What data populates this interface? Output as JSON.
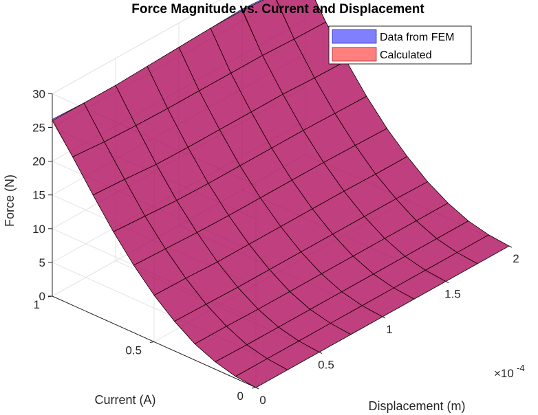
{
  "chart_data": {
    "type": "surface3d",
    "title": "Force Magnitude vs. Current and Displacement",
    "xlabel": "Displacement (m)",
    "ylabel": "Current (A)",
    "zlabel": "Force (N)",
    "x_exponent_label": "×10",
    "x_exponent_power": "-4",
    "xlim": [
      0,
      2
    ],
    "ylim": [
      0,
      1
    ],
    "zlim": [
      0,
      30
    ],
    "x_ticks": [
      "0",
      "0.5",
      "1",
      "1.5",
      "2"
    ],
    "y_ticks": [
      "0",
      "0.5",
      "1"
    ],
    "z_ticks": [
      "0",
      "5",
      "10",
      "15",
      "20",
      "25",
      "30"
    ],
    "x_grid": [
      0,
      0.25,
      0.5,
      0.75,
      1.0,
      1.25,
      1.5,
      1.75,
      2.0
    ],
    "y_grid": [
      0,
      0.1,
      0.2,
      0.3,
      0.4,
      0.5,
      0.6,
      0.7,
      0.8,
      0.9,
      1.0
    ],
    "legend_position": "top-right",
    "grid": true,
    "series": [
      {
        "name": "Data from FEM",
        "color": "#0000ff",
        "opacity": 0.5,
        "z": [
          [
            0.0,
            0.0,
            0.0,
            0.0,
            0.0,
            0.0,
            0.0,
            0.0,
            0.0
          ],
          [
            0.3,
            0.3,
            0.3,
            0.3,
            0.3,
            0.3,
            0.3,
            0.3,
            0.3
          ],
          [
            1.1,
            1.0,
            1.0,
            1.0,
            1.0,
            1.0,
            1.0,
            1.0,
            1.0
          ],
          [
            2.4,
            2.4,
            2.3,
            2.3,
            2.3,
            2.3,
            2.3,
            2.3,
            2.3
          ],
          [
            4.4,
            4.3,
            4.2,
            4.2,
            4.2,
            4.2,
            4.2,
            4.2,
            4.1
          ],
          [
            6.9,
            6.8,
            6.6,
            6.6,
            6.6,
            6.6,
            6.6,
            6.5,
            6.5
          ],
          [
            10.0,
            9.8,
            9.6,
            9.5,
            9.5,
            9.5,
            9.5,
            9.4,
            9.3
          ],
          [
            13.6,
            13.3,
            13.0,
            12.9,
            12.9,
            12.9,
            12.9,
            12.8,
            12.7
          ],
          [
            17.7,
            17.4,
            17.0,
            16.9,
            16.9,
            16.9,
            16.9,
            16.7,
            16.6
          ],
          [
            22.0,
            21.6,
            21.4,
            21.3,
            21.3,
            21.3,
            21.3,
            21.1,
            21.0
          ],
          [
            26.2,
            26.0,
            26.0,
            26.2,
            26.4,
            26.6,
            26.8,
            26.5,
            26.0
          ]
        ]
      },
      {
        "name": "Calculated",
        "color": "#ff0000",
        "opacity": 0.5,
        "z": [
          [
            0.0,
            0.0,
            0.0,
            0.0,
            0.0,
            0.0,
            0.0,
            0.0,
            0.0
          ],
          [
            0.3,
            0.3,
            0.3,
            0.3,
            0.3,
            0.3,
            0.3,
            0.3,
            0.3
          ],
          [
            1.1,
            1.0,
            1.0,
            1.0,
            1.0,
            1.0,
            1.0,
            1.0,
            1.0
          ],
          [
            2.4,
            2.4,
            2.3,
            2.3,
            2.3,
            2.3,
            2.3,
            2.3,
            2.3
          ],
          [
            4.4,
            4.3,
            4.2,
            4.2,
            4.2,
            4.2,
            4.2,
            4.2,
            4.1
          ],
          [
            6.9,
            6.8,
            6.6,
            6.6,
            6.6,
            6.6,
            6.6,
            6.5,
            6.5
          ],
          [
            10.0,
            9.8,
            9.6,
            9.5,
            9.5,
            9.5,
            9.5,
            9.4,
            9.3
          ],
          [
            13.6,
            13.3,
            13.0,
            12.9,
            12.9,
            12.9,
            12.9,
            12.8,
            12.7
          ],
          [
            17.7,
            17.4,
            17.0,
            16.9,
            16.9,
            16.9,
            16.9,
            16.7,
            16.6
          ],
          [
            22.0,
            21.6,
            21.4,
            21.3,
            21.3,
            21.3,
            21.3,
            21.1,
            21.0
          ],
          [
            26.0,
            26.0,
            26.0,
            26.2,
            26.4,
            26.6,
            26.6,
            26.3,
            25.8
          ]
        ]
      }
    ]
  }
}
